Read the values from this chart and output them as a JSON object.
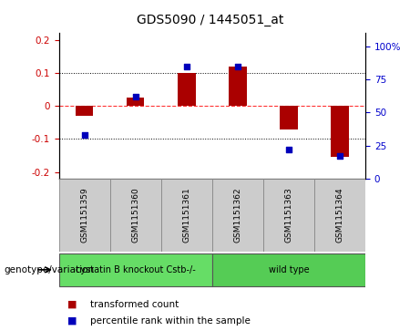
{
  "title": "GDS5090 / 1445051_at",
  "samples": [
    "GSM1151359",
    "GSM1151360",
    "GSM1151361",
    "GSM1151362",
    "GSM1151363",
    "GSM1151364"
  ],
  "bar_values": [
    -0.03,
    0.025,
    0.1,
    0.12,
    -0.07,
    -0.155
  ],
  "dot_values": [
    33,
    62,
    85,
    85,
    22,
    17
  ],
  "groups": [
    {
      "label": "cystatin B knockout Cstb-/-",
      "indices": [
        0,
        1,
        2
      ],
      "color": "#66DD66"
    },
    {
      "label": "wild type",
      "indices": [
        3,
        4,
        5
      ],
      "color": "#55CC55"
    }
  ],
  "bar_color": "#AA0000",
  "dot_color": "#0000BB",
  "ylim_left": [
    -0.22,
    0.22
  ],
  "ylim_right": [
    0,
    110
  ],
  "yticks_left": [
    -0.2,
    -0.1,
    0.0,
    0.1,
    0.2
  ],
  "ytick_labels_left": [
    "-0.2",
    "-0.1",
    "0",
    "0.1",
    "0.2"
  ],
  "yticks_right": [
    0,
    25,
    50,
    75,
    100
  ],
  "ytick_labels_right": [
    "0",
    "25",
    "50",
    "75",
    "100%"
  ],
  "zero_line_color": "#FF3333",
  "dot_line_color": "#000000",
  "xlabel_genotype": "genotype/variation",
  "legend_bar": "transformed count",
  "legend_dot": "percentile rank within the sample",
  "bg_color": "#FFFFFF",
  "plot_bg": "#FFFFFF",
  "sample_box_color": "#CCCCCC",
  "figsize": [
    4.61,
    3.63
  ],
  "dpi": 100
}
